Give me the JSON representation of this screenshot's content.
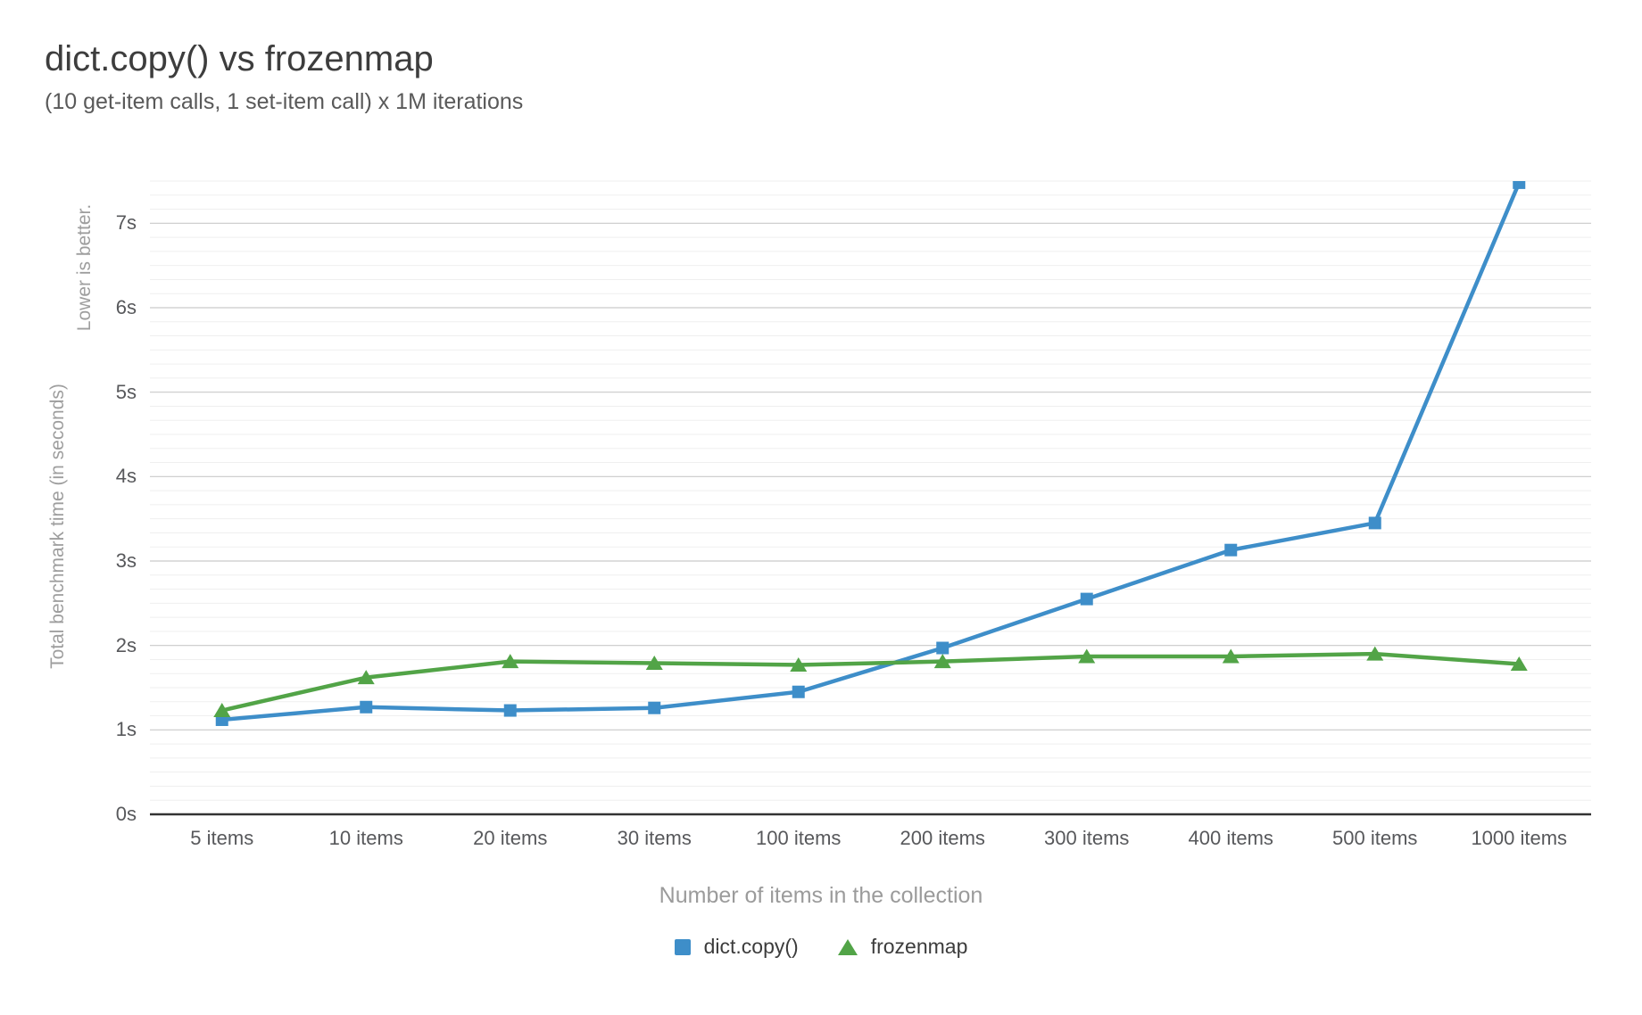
{
  "title": "dict.copy() vs frozenmap",
  "subtitle": "(10 get-item calls, 1 set-item call) x 1M iterations",
  "y_axis": {
    "note": "Lower is better.",
    "title": "Total benchmark time (in seconds)",
    "tick_labels": [
      "0s",
      "1s",
      "2s",
      "3s",
      "4s",
      "5s",
      "6s",
      "7s"
    ]
  },
  "x_axis": {
    "title": "Number of items in the collection"
  },
  "colors": {
    "dict_copy": "#3e8ec9",
    "frozenmap": "#52a447",
    "major_grid": "#c9c9c9",
    "minor_grid": "#efefef",
    "axis_line": "#333333"
  },
  "chart_data": {
    "type": "line",
    "title": "dict.copy() vs frozenmap",
    "subtitle": "(10 get-item calls, 1 set-item call) x 1M iterations",
    "xlabel": "Number of items in the collection",
    "ylabel": "Total benchmark time (in seconds)",
    "note": "Lower is better.",
    "categories": [
      "5 items",
      "10 items",
      "20 items",
      "30 items",
      "100 items",
      "200 items",
      "300 items",
      "400 items",
      "500 items",
      "1000 items"
    ],
    "series": [
      {
        "name": "dict.copy()",
        "marker": "square",
        "color": "#3e8ec9",
        "values": [
          1.12,
          1.27,
          1.23,
          1.26,
          1.45,
          1.97,
          2.55,
          3.13,
          3.45,
          7.48
        ]
      },
      {
        "name": "frozenmap",
        "marker": "triangle",
        "color": "#52a447",
        "values": [
          1.23,
          1.62,
          1.81,
          1.79,
          1.77,
          1.81,
          1.87,
          1.87,
          1.9,
          1.78
        ]
      }
    ],
    "ylim": [
      0,
      7.5
    ],
    "y_tick_interval": 1,
    "y_minor_divisions_per_unit": 6,
    "y_tick_unit": "s",
    "grid": true,
    "legend_position": "bottom"
  }
}
